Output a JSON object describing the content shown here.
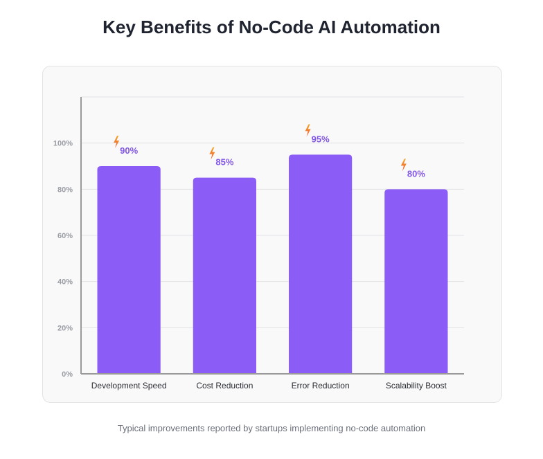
{
  "title": "Key Benefits of No-Code AI Automation",
  "caption": "Typical improvements reported by startups implementing no-code automation",
  "chart_data": {
    "type": "bar",
    "categories": [
      "Development Speed",
      "Cost Reduction",
      "Error Reduction",
      "Scalability Boost"
    ],
    "values": [
      90,
      85,
      95,
      80
    ],
    "data_labels": [
      "90%",
      "85%",
      "95%",
      "80%"
    ],
    "y_ticks": [
      0,
      20,
      40,
      60,
      80,
      100
    ],
    "y_tick_labels": [
      "0%",
      "20%",
      "40%",
      "60%",
      "80%",
      "100%"
    ],
    "ylim": [
      0,
      120
    ],
    "grid": true,
    "bar_color": "#8b5cf6",
    "label_color": "#8357e6",
    "annotation_icon": "lightning-bolt-icon"
  }
}
